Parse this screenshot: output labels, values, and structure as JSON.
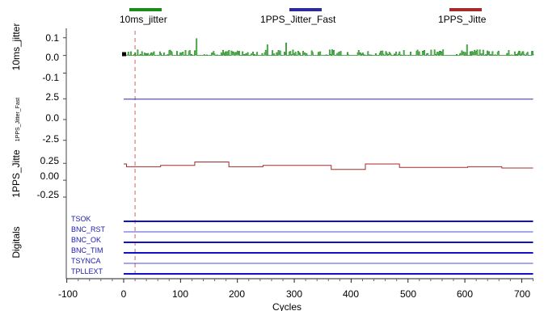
{
  "chart_data": {
    "type": "line",
    "xlabel": "Cycles",
    "xlim": [
      -100,
      730
    ],
    "x_ticks": [
      "-100",
      "0",
      "100",
      "200",
      "300",
      "400",
      "500",
      "600",
      "700"
    ],
    "marker_x": 20,
    "colors": {
      "jitter10ms": "#1a8c1a",
      "fast": "#2b2b9e",
      "pps": "#a52a2a",
      "digital": "#1010c8",
      "marker": "#cc6666"
    },
    "legend": [
      "10ms_jitter",
      "1PPS_Jitter_Fast",
      "1PPS_Jitte"
    ],
    "panels": [
      {
        "ylabel": "10ms_jitter",
        "ylim": [
          -0.18,
          0.14
        ],
        "y_ticks": [
          "0.1",
          "0.0",
          "-0.1"
        ],
        "y_tick_values": [
          0.1,
          0.0,
          -0.1
        ],
        "series": {
          "x_start": 0,
          "x_end": 720,
          "baseline": 0.0,
          "typical_amplitude": 0.02,
          "spikes": [
            {
              "x": 128,
              "y": 0.095
            },
            {
              "x": 252,
              "y": 0.06
            },
            {
              "x": 285,
              "y": 0.07
            },
            {
              "x": 418,
              "y": 0.055
            },
            {
              "x": 603,
              "y": 0.06
            }
          ]
        }
      },
      {
        "ylabel": "1PPS_Jitter_Fast",
        "ylim": [
          -3.5,
          3.5
        ],
        "y_ticks": [
          "2.5",
          "0.0",
          "-2.5"
        ],
        "y_tick_values": [
          2.5,
          0.0,
          -2.5
        ],
        "series": {
          "x": [
            0,
            720
          ],
          "y": [
            2.45,
            2.45
          ]
        }
      },
      {
        "ylabel": "1PPS_Jitte",
        "ylim": [
          -0.37,
          0.42
        ],
        "y_ticks": [
          "0.25",
          "0.00",
          "-0.25"
        ],
        "y_tick_values": [
          0.25,
          0.0,
          -0.25
        ],
        "series": {
          "x": [
            0,
            5,
            5,
            65,
            65,
            125,
            125,
            185,
            185,
            245,
            245,
            365,
            365,
            425,
            425,
            485,
            485,
            605,
            605,
            665,
            665,
            720
          ],
          "y": [
            0.24,
            0.24,
            0.2,
            0.2,
            0.22,
            0.22,
            0.27,
            0.27,
            0.2,
            0.2,
            0.22,
            0.22,
            0.16,
            0.16,
            0.24,
            0.24,
            0.19,
            0.19,
            0.2,
            0.2,
            0.18,
            0.18
          ]
        }
      },
      {
        "ylabel": "Digitals",
        "signals": [
          {
            "name": "TSOK",
            "level": 1
          },
          {
            "name": "BNC_RST",
            "level": 0
          },
          {
            "name": "BNC_OK",
            "level": 1
          },
          {
            "name": "BNC_TIM",
            "level": 1
          },
          {
            "name": "TSYNCA",
            "level": 0
          },
          {
            "name": "TPLLEXT",
            "level": 1
          }
        ]
      }
    ]
  }
}
